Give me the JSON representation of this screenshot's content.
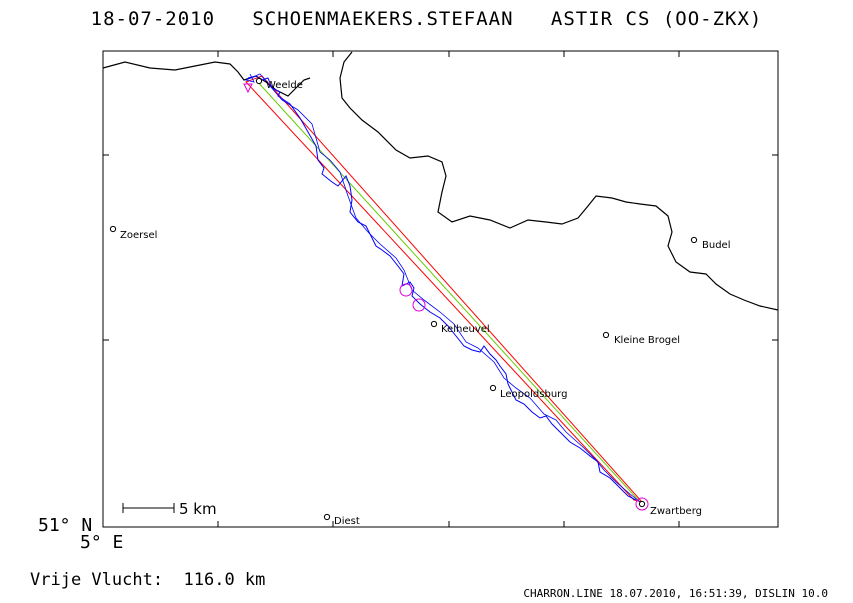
{
  "title": {
    "date": "18-07-2010",
    "pilot": "SCHOENMAEKERS.STEFAAN",
    "glider": "ASTIR CS (OO-ZKX)"
  },
  "coords": {
    "lat": "51° N",
    "lon": "5° E"
  },
  "scale_label": "5 km",
  "towns": {
    "weelde": "Weelde",
    "zoersel": "Zoersel",
    "budel": "Budel",
    "kelheuvel": "Kelheuvel",
    "kleine_brogel": "Kleine Brogel",
    "leopoldsburg": "Leopoldsburg",
    "zwartberg": "Zwartberg",
    "diest": "Diest"
  },
  "distance_text": "Vrije Vlucht:  116.0 km",
  "footer": "CHARRON.LINE 18.07.2010, 16:51:39, DISLIN 10.0",
  "colors": {
    "track": "#0000ff",
    "task": "#ff0000",
    "straight": "#66cc00",
    "turnpoint": "#dd00dd",
    "border": "#000000"
  }
}
